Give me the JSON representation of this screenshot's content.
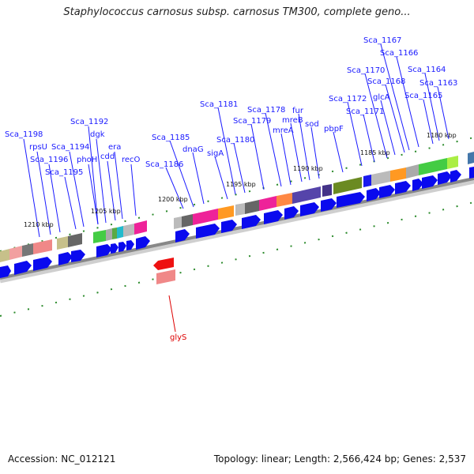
{
  "header": {
    "title": "Staphylococcus carnosus subsp. carnosus TM300, complete geno..."
  },
  "footer": {
    "accession": "Accession: NC_012121",
    "summary": "Topology: linear; Length: 2,566,424 bp; Genes: 2,537"
  },
  "map": {
    "ruler_labels": [
      {
        "id": "tick-1210",
        "text": "1210 kbp"
      },
      {
        "id": "tick-1205",
        "text": "1205 kbp"
      },
      {
        "id": "tick-1200",
        "text": "1200 kbp"
      },
      {
        "id": "tick-1195",
        "text": "1195 kbp"
      },
      {
        "id": "tick-1190",
        "text": "1190 kbp"
      },
      {
        "id": "tick-1185",
        "text": "1185 kbp"
      },
      {
        "id": "tick-1180",
        "text": "1180 kbp"
      }
    ],
    "gene_labels": [
      {
        "id": "sca1198",
        "text": "Sca_1198"
      },
      {
        "id": "rpsu",
        "text": "rpsU"
      },
      {
        "id": "sca1196",
        "text": "Sca_1196"
      },
      {
        "id": "sca1195",
        "text": "Sca_1195"
      },
      {
        "id": "sca1194",
        "text": "Sca_1194"
      },
      {
        "id": "sca1192",
        "text": "Sca_1192"
      },
      {
        "id": "dgk",
        "text": "dgk"
      },
      {
        "id": "phoh",
        "text": "phoH"
      },
      {
        "id": "cdd",
        "text": "cdd"
      },
      {
        "id": "era",
        "text": "era"
      },
      {
        "id": "reco",
        "text": "recO"
      },
      {
        "id": "sca1186",
        "text": "Sca_1186"
      },
      {
        "id": "sca1185",
        "text": "Sca_1185"
      },
      {
        "id": "dnag",
        "text": "dnaG"
      },
      {
        "id": "siga",
        "text": "sigA"
      },
      {
        "id": "sca1181",
        "text": "Sca_1181"
      },
      {
        "id": "sca1180",
        "text": "Sca_1180"
      },
      {
        "id": "sca1179",
        "text": "Sca_1179"
      },
      {
        "id": "sca1178",
        "text": "Sca_1178"
      },
      {
        "id": "mrea",
        "text": "mreA"
      },
      {
        "id": "mreb",
        "text": "mreB"
      },
      {
        "id": "fur",
        "text": "fur"
      },
      {
        "id": "sod",
        "text": "sod"
      },
      {
        "id": "pbpf",
        "text": "pbpF"
      },
      {
        "id": "sca1172",
        "text": "Sca_1172"
      },
      {
        "id": "sca1171",
        "text": "Sca_1171"
      },
      {
        "id": "sca1170",
        "text": "Sca_1170"
      },
      {
        "id": "glca",
        "text": "glcA"
      },
      {
        "id": "sca1168",
        "text": "Sca_1168"
      },
      {
        "id": "sca1167",
        "text": "Sca_1167"
      },
      {
        "id": "sca1166",
        "text": "Sca_1166"
      },
      {
        "id": "sca1165",
        "text": "Sca_1165"
      },
      {
        "id": "sca1164",
        "text": "Sca_1164"
      },
      {
        "id": "sca1163",
        "text": "Sca_1163"
      },
      {
        "id": "glys",
        "text": "glyS"
      }
    ],
    "colors": {
      "label_blue": "#1a1aff",
      "label_red": "#dd0000",
      "arrow_blue": "#0a0aee",
      "tick_green": "#2a8a2a",
      "backbone": "#888888"
    }
  }
}
